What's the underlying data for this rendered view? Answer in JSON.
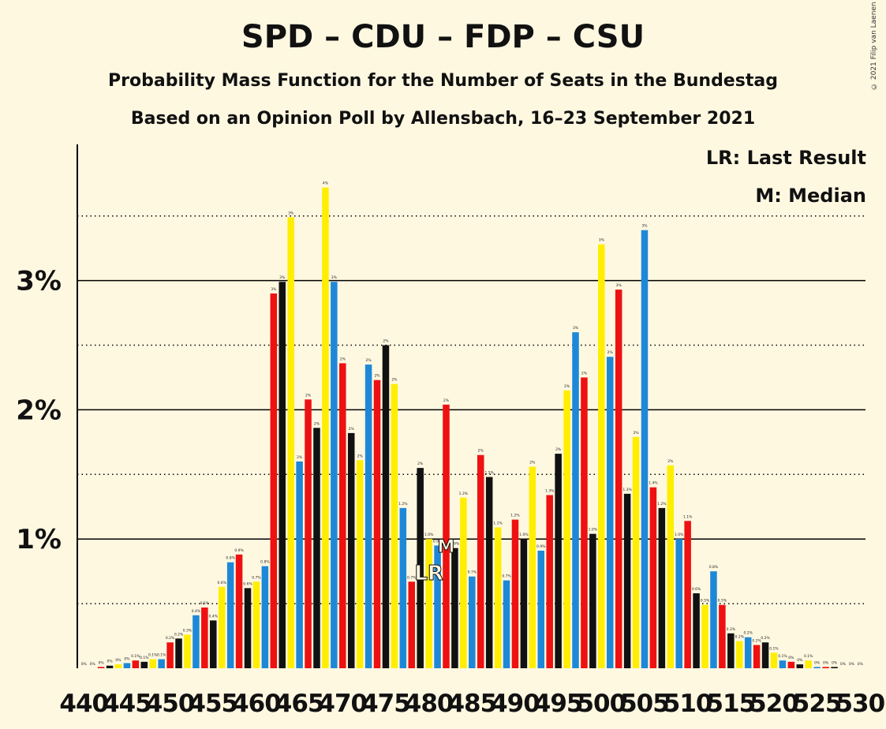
{
  "title": "SPD – CDU – FDP – CSU",
  "subtitle": "Probability Mass Function for the Number of Seats in the Bundestag",
  "subtitle2": "Based on an Opinion Poll by Allensbach, 16–23 September 2021",
  "copyright": "© 2021 Filip van Laenen",
  "legend": {
    "last_result": "LR: Last Result",
    "median": "M: Median"
  },
  "chart_data": {
    "type": "bar",
    "x_start": 440,
    "x_end": 530,
    "x_tick_labels": [
      "440",
      "445",
      "450",
      "455",
      "460",
      "465",
      "470",
      "475",
      "480",
      "485",
      "490",
      "495",
      "500",
      "505",
      "510",
      "515",
      "520",
      "525",
      "530"
    ],
    "y_tick_labels": [
      "1%",
      "2%",
      "3%"
    ],
    "ylim": [
      0,
      4
    ],
    "last_result_seat": 480,
    "last_result_marker": "LR",
    "median_seat": 482,
    "median_marker": "M",
    "colors": [
      "#ffee00",
      "#1e88d8",
      "#ee1111",
      "#111111"
    ],
    "values": [
      0.0,
      0.0,
      0.01,
      0.02,
      0.03,
      0.04,
      0.06,
      0.05,
      0.07,
      0.07,
      0.2,
      0.23,
      0.26,
      0.41,
      0.47,
      0.37,
      0.63,
      0.82,
      0.88,
      0.62,
      0.67,
      0.79,
      2.9,
      2.99,
      3.49,
      1.6,
      2.08,
      1.86,
      3.72,
      2.99,
      2.36,
      1.82,
      1.61,
      2.35,
      2.23,
      2.5,
      2.2,
      1.24,
      0.67,
      1.55,
      1.0,
      0.95,
      2.04,
      0.93,
      1.32,
      0.71,
      1.65,
      1.48,
      1.09,
      0.68,
      1.15,
      1.0,
      1.56,
      0.91,
      1.34,
      1.66,
      2.15,
      2.6,
      2.25,
      1.04,
      3.28,
      2.41,
      2.93,
      1.35,
      1.79,
      3.39,
      1.4,
      1.24,
      1.57,
      1.0,
      1.14,
      0.58,
      0.49,
      0.75,
      0.49,
      0.27,
      0.21,
      0.24,
      0.18,
      0.2,
      0.12,
      0.06,
      0.05,
      0.03,
      0.06,
      0.01,
      0.01,
      0.01,
      0.0,
      0.0,
      0.0
    ],
    "value_labels": [
      "0%",
      "0%",
      "0%",
      "0%",
      "0%",
      "0%",
      "0.1%",
      "0.1%",
      "0.1%",
      "0.1%",
      "0.2%",
      "0.2%",
      "0.3%",
      "0.4%",
      "0.5%",
      "0.4%",
      "0.6%",
      "0.8%",
      "0.9%",
      "0.6%",
      "0.7%",
      "0.8%",
      "3%",
      "3%",
      "3%",
      "2%",
      "2%",
      "2%",
      "4%",
      "3%",
      "2%",
      "2%",
      "2%",
      "2%",
      "2%",
      "2%",
      "2%",
      "1.2%",
      "0.7%",
      "2%",
      "1.0%",
      "0.9%",
      "2%",
      "0.9%",
      "1.3%",
      "0.7%",
      "2%",
      "1.5%",
      "1.1%",
      "0.7%",
      "1.2%",
      "1.0%",
      "2%",
      "0.9%",
      "1.3%",
      "2%",
      "2%",
      "3%",
      "2%",
      "1.0%",
      "3%",
      "2%",
      "3%",
      "1.3%",
      "2%",
      "3%",
      "1.4%",
      "1.2%",
      "2%",
      "1.0%",
      "1.1%",
      "0.6%",
      "0.5%",
      "0.8%",
      "0.5%",
      "0.3%",
      "0.2%",
      "0.2%",
      "0.2%",
      "0.2%",
      "0.1%",
      "0.1%",
      "0%",
      "0%",
      "0.1%",
      "0%",
      "0%",
      "0%",
      "0%",
      "0%",
      "0%"
    ]
  }
}
